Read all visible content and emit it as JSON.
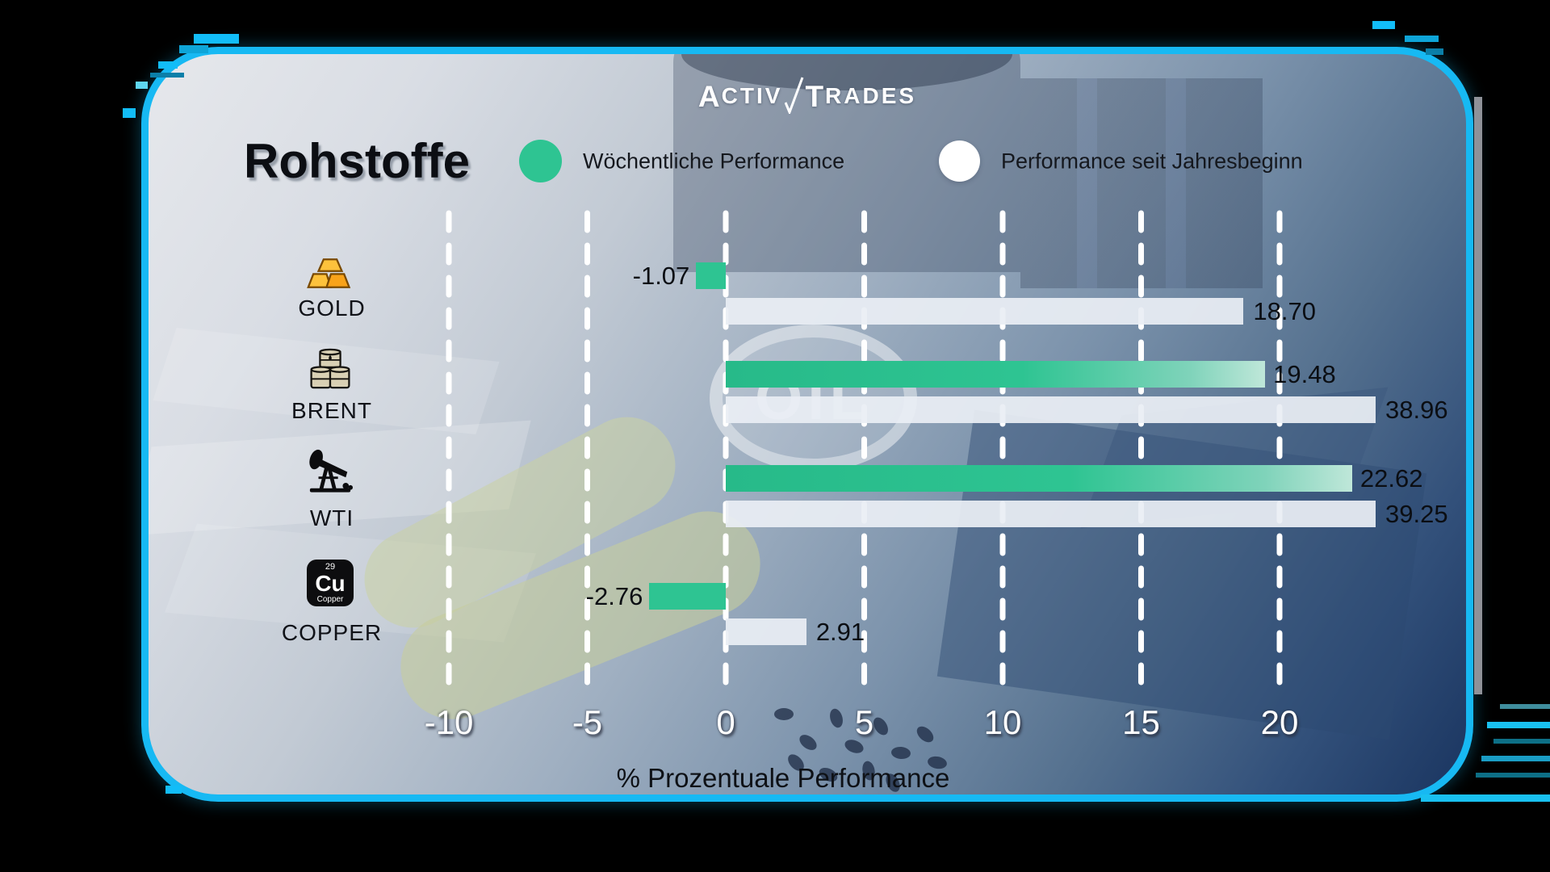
{
  "branding": {
    "logo_part1": "Activ",
    "logo_part2": "Trades"
  },
  "title": "Rohstoffe",
  "legend": [
    {
      "label": "Wöchentliche Performance",
      "color": "#2ec492"
    },
    {
      "label": "Performance seit Jahresbeginn",
      "color": "#ffffff"
    }
  ],
  "axis": {
    "tick_labels": [
      "-10",
      "-5",
      "0",
      "5",
      "10",
      "15",
      "20"
    ],
    "tick_values": [
      -10,
      -5,
      0,
      5,
      10,
      15,
      20
    ],
    "title": "% Prozentuale Performance"
  },
  "watermark": "OIL",
  "copper_icon_text": {
    "number": "29",
    "symbol": "Cu",
    "name": "Copper"
  },
  "rows": [
    {
      "label": "GOLD",
      "icon": "gold-bars-icon",
      "weekly_display": "-1.07",
      "ytd_display": "18.70",
      "weekly": -1.07,
      "ytd": 18.7
    },
    {
      "label": "BRENT",
      "icon": "oil-barrels-icon",
      "weekly_display": "19.48",
      "ytd_display": "38.96",
      "weekly": 19.48,
      "ytd": 38.96
    },
    {
      "label": "WTI",
      "icon": "pump-jack-icon",
      "weekly_display": "22.62",
      "ytd_display": "39.25",
      "weekly": 22.62,
      "ytd": 39.25
    },
    {
      "label": "COPPER",
      "icon": "copper-element-icon",
      "weekly_display": "-2.76",
      "ytd_display": "2.91",
      "weekly": -2.76,
      "ytd": 2.91
    }
  ],
  "chart_data": {
    "type": "bar",
    "orientation": "horizontal",
    "title": "Rohstoffe",
    "categories": [
      "GOLD",
      "BRENT",
      "WTI",
      "COPPER"
    ],
    "series": [
      {
        "name": "Wöchentliche Performance",
        "color": "#2ec492",
        "values": [
          -1.07,
          19.48,
          22.62,
          -2.76
        ]
      },
      {
        "name": "Performance seit Jahresbeginn",
        "color": "#ffffff",
        "values": [
          18.7,
          38.96,
          39.25,
          2.91
        ]
      }
    ],
    "xlabel": "% Prozentuale Performance",
    "xlim": [
      -12.5,
      23.5
    ],
    "gridlines": [
      -10,
      -5,
      0,
      5,
      10,
      15,
      20
    ],
    "grid_style": "dashed-vertical-white",
    "legend_position": "top",
    "bars_clipped_at_right_edge": [
      38.96,
      39.25
    ]
  },
  "colors": {
    "frame_cyan": "#17b9f3",
    "weekly_green": "#2ec492",
    "ytd_white": "#eaeef4",
    "outside_black": "#000000"
  }
}
